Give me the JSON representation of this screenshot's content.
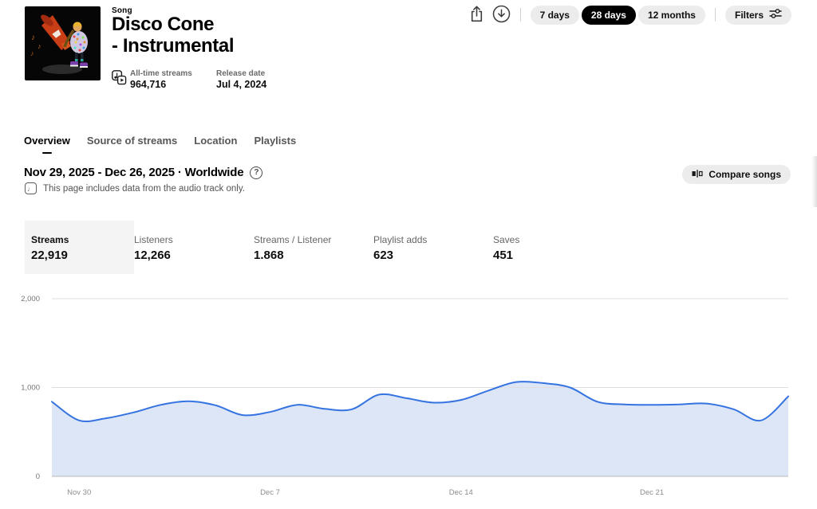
{
  "page": {
    "song_label": "Song",
    "title_lines": [
      "Disco Cone",
      "- Instrumental"
    ],
    "all_time_streams_label": "All-time streams",
    "all_time_streams_value": "964,716",
    "release_date_label": "Release date",
    "release_date_value": "Jul 4, 2024"
  },
  "toolbar": {
    "ranges": [
      {
        "label": "7 days",
        "selected": false
      },
      {
        "label": "28 days",
        "selected": true
      },
      {
        "label": "12 months",
        "selected": false
      }
    ],
    "filters_label": "Filters"
  },
  "tabs": [
    {
      "label": "Overview",
      "selected": true
    },
    {
      "label": "Source of streams",
      "selected": false
    },
    {
      "label": "Location",
      "selected": false
    },
    {
      "label": "Playlists",
      "selected": false
    }
  ],
  "period": {
    "heading": "Nov 29, 2025 - Dec 26, 2025 · Worldwide",
    "note": "This page includes data from the audio track only.",
    "compare_label": "Compare songs"
  },
  "stats": [
    {
      "label": "Streams",
      "value": "22,919",
      "selected": true
    },
    {
      "label": "Listeners",
      "value": "12,266",
      "selected": false
    },
    {
      "label": "Streams / Listener",
      "value": "1.868",
      "selected": false
    },
    {
      "label": "Playlist adds",
      "value": "623",
      "selected": false
    },
    {
      "label": "Saves",
      "value": "451",
      "selected": false
    }
  ],
  "chart_data": {
    "type": "area",
    "x": [
      "Nov 29",
      "Nov 30",
      "Dec 1",
      "Dec 2",
      "Dec 3",
      "Dec 4",
      "Dec 5",
      "Dec 6",
      "Dec 7",
      "Dec 8",
      "Dec 9",
      "Dec 10",
      "Dec 11",
      "Dec 12",
      "Dec 13",
      "Dec 14",
      "Dec 15",
      "Dec 16",
      "Dec 17",
      "Dec 18",
      "Dec 19",
      "Dec 20",
      "Dec 21",
      "Dec 22",
      "Dec 23",
      "Dec 24",
      "Dec 25",
      "Dec 26"
    ],
    "series": [
      {
        "name": "Streams",
        "values": [
          840,
          630,
          655,
          720,
          805,
          845,
          800,
          690,
          725,
          805,
          760,
          755,
          920,
          880,
          830,
          860,
          965,
          1060,
          1050,
          1000,
          840,
          810,
          805,
          810,
          820,
          755,
          630,
          900
        ]
      }
    ],
    "ylim": [
      0,
      2000
    ],
    "yticks": [
      {
        "value": 0,
        "label": "0"
      },
      {
        "value": 1000,
        "label": "1,000"
      },
      {
        "value": 2000,
        "label": "2,000"
      }
    ],
    "xticks": [
      {
        "index": 1,
        "label": "Nov 30"
      },
      {
        "index": 8,
        "label": "Dec 7"
      },
      {
        "index": 15,
        "label": "Dec 14"
      },
      {
        "index": 22,
        "label": "Dec 21"
      }
    ],
    "grid": "horizontal",
    "legend": "none",
    "line_color": "#3573e0",
    "fill_color": "#dce6f7",
    "gridline_color": "#dedede",
    "baseline_color": "#b8b8b8",
    "tick_color": "#8e8e8e"
  },
  "colors": {
    "accent_black": "#000000",
    "pill_bg": "#ececec",
    "card_bg": "#f4f4f4",
    "chart_line": "#3573e0",
    "chart_fill": "#dce6f7"
  }
}
